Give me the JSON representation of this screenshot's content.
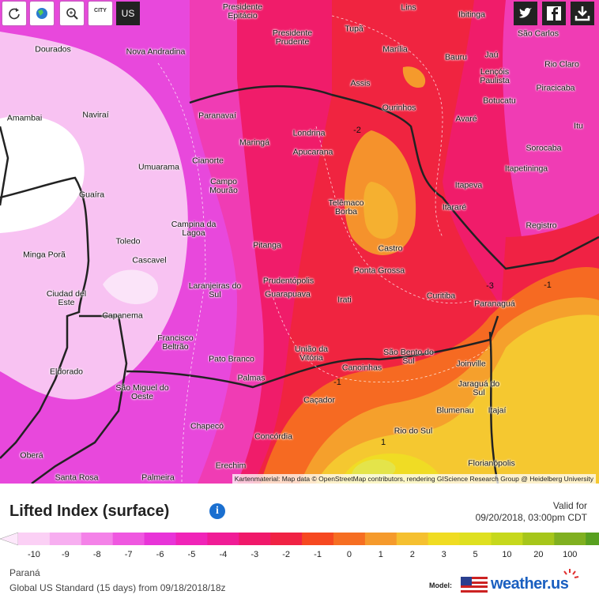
{
  "toolbar": {
    "city_icon": "CITY",
    "country": "US"
  },
  "map": {
    "cities": [
      "Presidente Epitácio",
      "Lins",
      "Ibitinga",
      "São Carlos",
      "Tupã",
      "Presidente Prudente",
      "Marília",
      "Bauru",
      "Jaú",
      "Rio Claro",
      "Lençóis Paulista",
      "Dourados",
      "Nova Andradina",
      "Assis",
      "Piracicaba",
      "Botucatu",
      "Amambai",
      "Naviraí",
      "Paranavaí",
      "Ourinhos",
      "Avaré",
      "Itu",
      "Londrina",
      "Maringá",
      "Apucarana",
      "Sorocaba",
      "Umuarama",
      "Cianorte",
      "Itapetininga",
      "Campo Mourão",
      "Itapeva",
      "Guaíra",
      "Telêmaco Borba",
      "Itararé",
      "Campina da Lagoa",
      "Registro",
      "Toledo",
      "Pitanga",
      "Castro",
      "Cascavel",
      "Minga Porã",
      "Ponta Grossa",
      "Prudentópolis",
      "Laranjeiras do Sul",
      "Guarapuava",
      "Curitiba",
      "Irati",
      "Ciudad del Este",
      "Paranaguá",
      "Capanema",
      "Francisco Beltrão",
      "União da Vitória",
      "São Bento do Sul",
      "Pato Branco",
      "Joinville",
      "Canoinhas",
      "Palmas",
      "Eldorado",
      "Jaraguá do Sul",
      "São Miguel do Oeste",
      "Caçador",
      "Blumenau",
      "Itajaí",
      "Chapecó",
      "Rio do Sul",
      "Concórdia",
      "Oberá",
      "Florianópolis",
      "Erechim",
      "Santa Rosa",
      "Palmeira"
    ],
    "contour_labels": [
      -2,
      -3,
      -1,
      -1,
      1
    ],
    "attribution": "Kartenmaterial: Map data © OpenStreetMap contributors, rendering GIScience Research Group @ Heidelberg University"
  },
  "legend": {
    "title": "Lifted Index (surface)",
    "info": "i",
    "valid_label": "Valid for",
    "valid_time": "09/20/2018, 03:00pm CDT",
    "ticks": [
      -10,
      -9,
      -8,
      -7,
      -6,
      -5,
      -4,
      -3,
      -2,
      -1,
      0,
      1,
      2,
      3,
      5,
      10,
      20,
      100
    ],
    "colors": [
      "#fde8fb",
      "#fbd0f5",
      "#f7aef0",
      "#f482e8",
      "#ef58e0",
      "#e834d8",
      "#f024b8",
      "#f01c96",
      "#f0186a",
      "#f02244",
      "#f64820",
      "#f66e22",
      "#f59a2c",
      "#f5c030",
      "#f0dc22",
      "#dfe020",
      "#c6d81c",
      "#a6c61a",
      "#80b020",
      "#58a020",
      "#2e8b2e"
    ]
  },
  "footer": {
    "region": "Paraná",
    "model_run": "Global US Standard  (15 days) from 09/18/2018/18z",
    "model_label": "Model:",
    "brand": "weather.us"
  }
}
